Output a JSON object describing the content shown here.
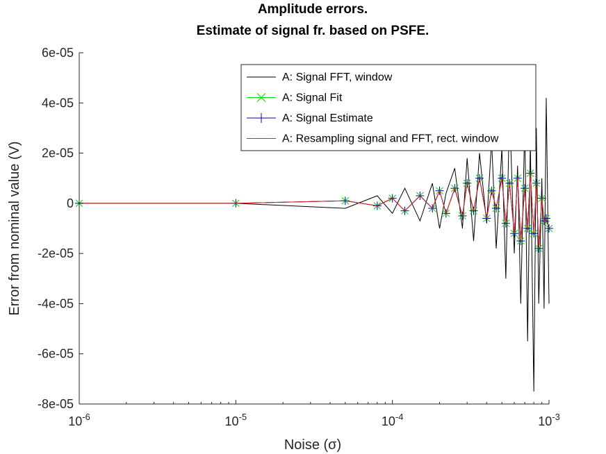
{
  "chart_data": {
    "type": "line",
    "title": [
      "Amplitude errors.",
      "Estimate of signal fr. based on PSFE."
    ],
    "xlabel": "Noise (σ)",
    "ylabel": "Error from nominal value (V)",
    "xscale": "log",
    "xlim": [
      1e-06,
      0.001
    ],
    "ylim": [
      -8e-05,
      6e-05
    ],
    "xticks": [
      {
        "value": 1e-06,
        "base": "10",
        "exp": "-6"
      },
      {
        "value": 1e-05,
        "base": "10",
        "exp": "-5"
      },
      {
        "value": 0.0001,
        "base": "10",
        "exp": "-4"
      },
      {
        "value": 0.001,
        "base": "10",
        "exp": "-3"
      }
    ],
    "yticks": [
      {
        "value": 6e-05,
        "label": "6e-05"
      },
      {
        "value": 4e-05,
        "label": "4e-05"
      },
      {
        "value": 2e-05,
        "label": "2e-05"
      },
      {
        "value": 0,
        "label": "0"
      },
      {
        "value": -2e-05,
        "label": "-2e-05"
      },
      {
        "value": -4e-05,
        "label": "-4e-05"
      },
      {
        "value": -6e-05,
        "label": "-6e-05"
      },
      {
        "value": -8e-05,
        "label": "-8e-05"
      }
    ],
    "grid": false,
    "legend_position": "top-right",
    "x": [
      1e-06,
      1e-05,
      5e-05,
      8e-05,
      0.0001,
      0.00012,
      0.00015,
      0.00018,
      0.0002,
      0.00022,
      0.00025,
      0.00028,
      0.0003,
      0.00033,
      0.00036,
      0.0004,
      0.00043,
      0.00046,
      0.0005,
      0.00053,
      0.00056,
      0.0006,
      0.00063,
      0.00066,
      0.0007,
      0.00073,
      0.00076,
      0.0008,
      0.00083,
      0.00086,
      0.0009,
      0.00093,
      0.00096,
      0.001
    ],
    "series": [
      {
        "name": "A: Signal FFT, window",
        "color": "#000000",
        "marker": "none",
        "values": [
          0,
          0,
          -2e-06,
          3e-06,
          -4e-06,
          6e-06,
          -7e-06,
          8e-06,
          -1e-05,
          4e-06,
          1.4e-05,
          -1e-05,
          1.8e-05,
          -1.5e-05,
          2e-05,
          -8e-06,
          2.5e-05,
          -1.8e-05,
          2.2e-05,
          -3e-05,
          3.8e-05,
          -2e-05,
          1.5e-05,
          -4e-05,
          3.2e-05,
          -5.5e-05,
          2.5e-05,
          -7.5e-05,
          3e-05,
          -4e-05,
          1e-05,
          -4.2e-05,
          4.2e-05,
          -4e-05
        ]
      },
      {
        "name": "A: Signal Fit",
        "color": "#00dd00",
        "marker": "x",
        "values": [
          0,
          0,
          1e-06,
          -1e-06,
          2e-06,
          -3e-06,
          3e-06,
          -2e-06,
          5e-06,
          -4e-06,
          6e-06,
          -5e-06,
          8e-06,
          -3e-06,
          1e-05,
          -6e-06,
          5e-06,
          -2e-06,
          1e-05,
          -8e-06,
          8e-06,
          -1.2e-05,
          1e-05,
          -1.5e-05,
          6e-06,
          -1e-05,
          1.2e-05,
          -1.2e-05,
          8e-06,
          -1.8e-05,
          2e-06,
          -7e-06,
          -6e-06,
          -1e-05
        ]
      },
      {
        "name": "A: Signal Estimate",
        "color": "#0000aa",
        "marker": "+",
        "values": [
          0,
          0,
          1e-06,
          -1e-06,
          2e-06,
          -3e-06,
          3e-06,
          -2e-06,
          5e-06,
          -4e-06,
          6e-06,
          -5e-06,
          8e-06,
          -3e-06,
          1e-05,
          -6e-06,
          5e-06,
          -2e-06,
          1e-05,
          -8e-06,
          8e-06,
          -1.2e-05,
          1e-05,
          -1.5e-05,
          6e-06,
          -1e-05,
          1.2e-05,
          -1.2e-05,
          8e-06,
          -1.8e-05,
          2e-06,
          -7e-06,
          -6e-06,
          -1e-05
        ]
      },
      {
        "name": "A: Resampling signal and FFT, rect. window",
        "color": "#dd2222",
        "marker": "none",
        "values": [
          0,
          0,
          1e-06,
          -1e-06,
          2e-06,
          -3e-06,
          3e-06,
          -2e-06,
          5e-06,
          -4e-06,
          6e-06,
          -5e-06,
          8e-06,
          -3e-06,
          1e-05,
          -6e-06,
          5e-06,
          -2e-06,
          1e-05,
          -8e-06,
          8e-06,
          -1.2e-05,
          1e-05,
          -1.5e-05,
          6e-06,
          -1e-05,
          1.2e-05,
          -1.2e-05,
          8e-06,
          -1.8e-05,
          2e-06,
          -7e-06,
          -6e-06,
          -1e-05
        ]
      }
    ]
  }
}
